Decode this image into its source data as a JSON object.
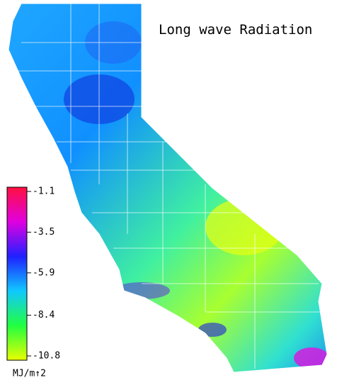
{
  "title": "Long wave Radiation",
  "colorbar": {
    "ticks": [
      -1.1,
      -3.5,
      -5.9,
      -8.4,
      -10.8
    ],
    "colors": [
      "#ff1040",
      "#e000e0",
      "#2020ff",
      "#10c8ff",
      "#20ff40",
      "#e8ff00"
    ],
    "unit": "MJ/m↑2"
  }
}
